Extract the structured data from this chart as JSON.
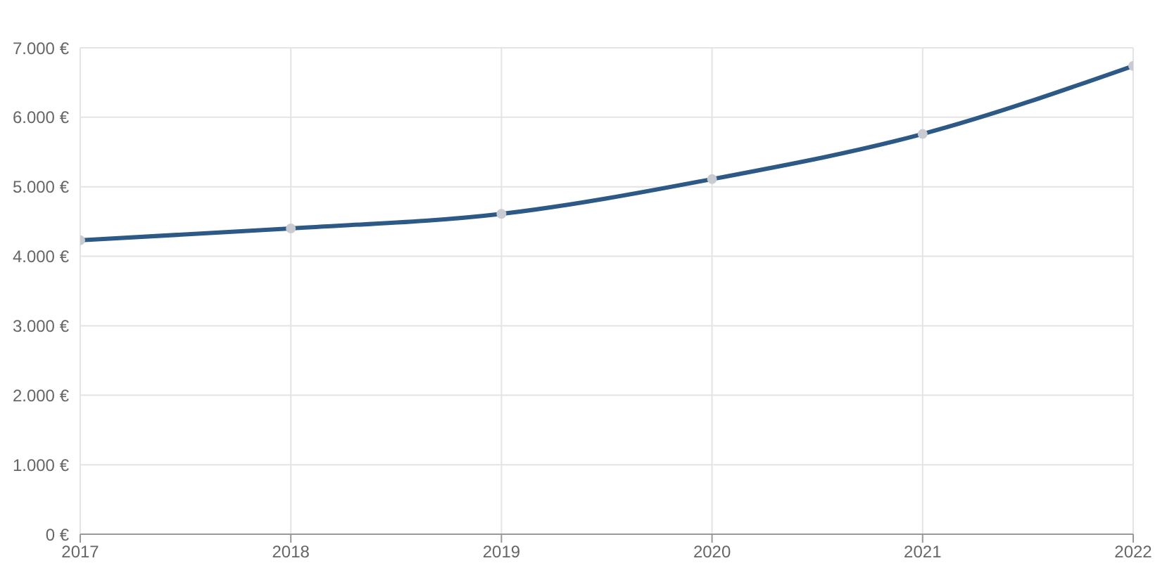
{
  "chart_data": {
    "type": "line",
    "x": [
      2017,
      2018,
      2019,
      2020,
      2021,
      2022
    ],
    "series": [
      {
        "color": "#2d5986",
        "values": [
          4230,
          4400,
          4610,
          5110,
          5760,
          6740
        ]
      }
    ],
    "xlim": [
      2017,
      2022
    ],
    "xticks": [
      2017,
      2018,
      2019,
      2020,
      2021,
      2022
    ],
    "ylim": [
      0,
      7000
    ],
    "yticks": [
      {
        "value": 0,
        "label": "0 €"
      },
      {
        "value": 1000,
        "label": "1.000 €"
      },
      {
        "value": 2000,
        "label": "2.000 €"
      },
      {
        "value": 3000,
        "label": "3.000 €"
      },
      {
        "value": 4000,
        "label": "4.000 €"
      },
      {
        "value": 5000,
        "label": "5.000 €"
      },
      {
        "value": 6000,
        "label": "6.000 €"
      },
      {
        "value": 7000,
        "label": "7.000 €"
      }
    ],
    "grid": true,
    "marker": "circle",
    "line_style": "solid"
  }
}
